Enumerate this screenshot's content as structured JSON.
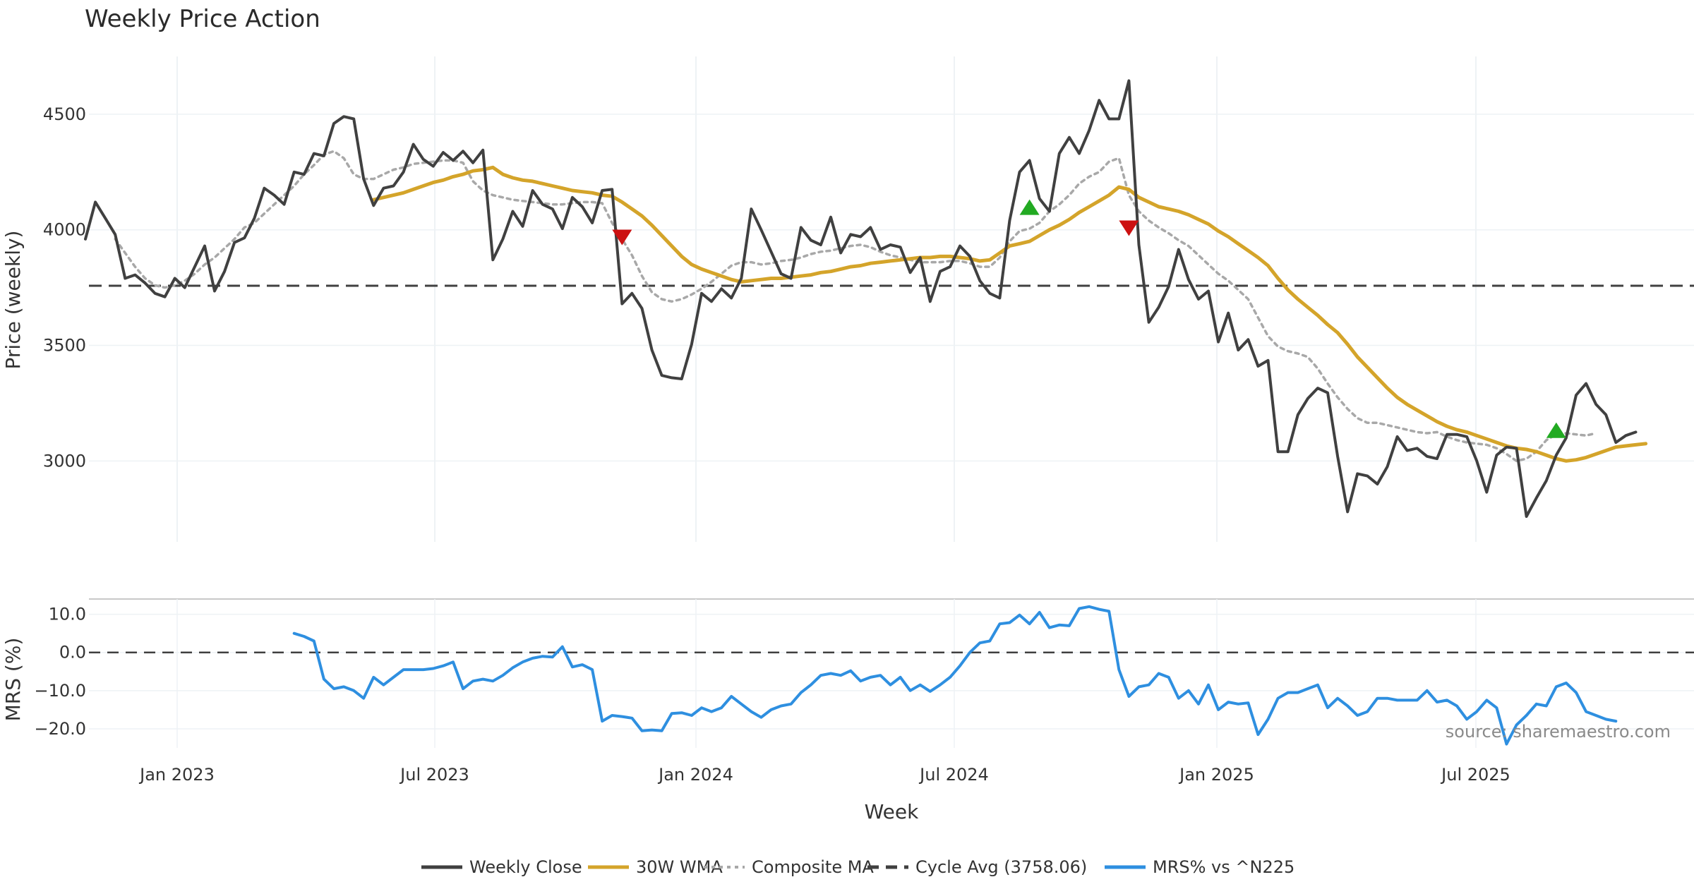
{
  "chart_data": {
    "type": "line",
    "title": "Weekly Price Action",
    "xlabel": "Week",
    "source": "source: sharemaestro.com",
    "x_ticks": [
      "Jan 2023",
      "Jul 2023",
      "Jan 2024",
      "Jul 2024",
      "Jan 2025",
      "Jul 2025"
    ],
    "start_week": 0,
    "end_week": 156,
    "price_panel": {
      "ylabel": "Price (weekly)",
      "ylim": [
        2650,
        4750
      ],
      "y_ticks": [
        3000,
        3500,
        4000,
        4500
      ],
      "cycle_avg": 3758.06,
      "series": [
        {
          "name": "Weekly Close",
          "color": "#404040",
          "style": "solid",
          "start": 0,
          "values": [
            3960,
            4120,
            4050,
            3980,
            3790,
            3805,
            3770,
            3725,
            3710,
            3790,
            3750,
            3840,
            3930,
            3735,
            3820,
            3945,
            3965,
            4050,
            4180,
            4150,
            4110,
            4250,
            4240,
            4330,
            4320,
            4460,
            4490,
            4480,
            4220,
            4105,
            4180,
            4190,
            4250,
            4370,
            4305,
            4275,
            4335,
            4300,
            4340,
            4290,
            4345,
            3870,
            3960,
            4080,
            4015,
            4170,
            4110,
            4090,
            4005,
            4140,
            4100,
            4030,
            4170,
            4175,
            3680,
            3725,
            3660,
            3480,
            3370,
            3360,
            3355,
            3505,
            3725,
            3690,
            3745,
            3705,
            3790,
            4090,
            4000,
            3905,
            3810,
            3790,
            4010,
            3955,
            3935,
            4055,
            3900,
            3980,
            3970,
            4010,
            3915,
            3935,
            3925,
            3815,
            3880,
            3690,
            3820,
            3840,
            3930,
            3885,
            3780,
            3725,
            3705,
            4040,
            4250,
            4300,
            4135,
            4080,
            4330,
            4400,
            4330,
            4430,
            4560,
            4480,
            4480,
            4645,
            3935,
            3600,
            3665,
            3755,
            3915,
            3785,
            3700,
            3735,
            3515,
            3640,
            3480,
            3525,
            3410,
            3435,
            3040,
            3040,
            3200,
            3270,
            3315,
            3295,
            3020,
            2780,
            2945,
            2935,
            2900,
            2975,
            3105,
            3045,
            3055,
            3020,
            3010,
            3115,
            3115,
            3105,
            3000,
            2865,
            3025,
            3060,
            3055,
            2760,
            2840,
            2915,
            3025,
            3100,
            3285,
            3335,
            3245,
            3200,
            3080,
            3110,
            3125
          ]
        },
        {
          "name": "30W WMA",
          "color": "#d4a42a",
          "style": "solid",
          "start": 29,
          "values": [
            4130,
            4140,
            4150,
            4160,
            4175,
            4190,
            4205,
            4215,
            4230,
            4240,
            4255,
            4260,
            4270,
            4240,
            4225,
            4215,
            4210,
            4200,
            4190,
            4180,
            4170,
            4165,
            4160,
            4150,
            4145,
            4120,
            4090,
            4060,
            4020,
            3975,
            3930,
            3885,
            3850,
            3830,
            3815,
            3800,
            3785,
            3775,
            3780,
            3785,
            3790,
            3790,
            3795,
            3800,
            3805,
            3815,
            3820,
            3830,
            3840,
            3845,
            3855,
            3860,
            3865,
            3870,
            3875,
            3880,
            3880,
            3885,
            3885,
            3880,
            3875,
            3865,
            3870,
            3900,
            3930,
            3940,
            3950,
            3975,
            4000,
            4020,
            4045,
            4075,
            4100,
            4125,
            4150,
            4185,
            4175,
            4140,
            4120,
            4100,
            4090,
            4080,
            4065,
            4045,
            4025,
            3995,
            3970,
            3940,
            3910,
            3880,
            3845,
            3790,
            3740,
            3700,
            3665,
            3630,
            3590,
            3555,
            3505,
            3450,
            3405,
            3360,
            3315,
            3275,
            3245,
            3220,
            3195,
            3170,
            3150,
            3135,
            3125,
            3110,
            3095,
            3080,
            3065,
            3055,
            3050,
            3040,
            3025,
            3010,
            3000,
            3005,
            3015,
            3030,
            3045,
            3060,
            3065,
            3070,
            3075
          ]
        },
        {
          "name": "Composite MA",
          "color": "#a8a8a8",
          "style": "dotted",
          "start": 3,
          "values": [
            3960,
            3900,
            3840,
            3790,
            3760,
            3750,
            3760,
            3780,
            3810,
            3850,
            3880,
            3920,
            3960,
            4010,
            4030,
            4070,
            4110,
            4150,
            4190,
            4240,
            4280,
            4325,
            4340,
            4310,
            4240,
            4220,
            4220,
            4240,
            4260,
            4270,
            4285,
            4290,
            4295,
            4300,
            4300,
            4290,
            4210,
            4170,
            4150,
            4140,
            4130,
            4125,
            4120,
            4115,
            4110,
            4110,
            4115,
            4120,
            4120,
            4115,
            4030,
            3960,
            3890,
            3800,
            3730,
            3700,
            3690,
            3700,
            3720,
            3745,
            3775,
            3810,
            3845,
            3860,
            3860,
            3850,
            3855,
            3865,
            3870,
            3880,
            3895,
            3905,
            3910,
            3920,
            3930,
            3935,
            3925,
            3905,
            3890,
            3880,
            3870,
            3860,
            3860,
            3860,
            3865,
            3865,
            3855,
            3840,
            3840,
            3880,
            3950,
            3995,
            4005,
            4030,
            4080,
            4110,
            4150,
            4200,
            4230,
            4250,
            4295,
            4310,
            4150,
            4080,
            4040,
            4010,
            3985,
            3955,
            3930,
            3890,
            3850,
            3810,
            3780,
            3740,
            3700,
            3620,
            3540,
            3495,
            3475,
            3465,
            3450,
            3400,
            3335,
            3275,
            3225,
            3185,
            3165,
            3165,
            3155,
            3145,
            3135,
            3125,
            3120,
            3125,
            3105,
            3090,
            3080,
            3075,
            3070,
            3055,
            3030,
            3000,
            3010,
            3040,
            3090,
            3115,
            3120,
            3115,
            3110,
            3120
          ]
        }
      ],
      "signals": [
        {
          "type": "sell",
          "week": 54,
          "price": 3970,
          "color": "#cc1111"
        },
        {
          "type": "buy",
          "week": 95,
          "price": 4095,
          "color": "#22aa22"
        },
        {
          "type": "sell",
          "week": 105,
          "price": 4010,
          "color": "#cc1111"
        },
        {
          "type": "buy",
          "week": 148,
          "price": 3130,
          "color": "#22aa22"
        }
      ]
    },
    "mrs_panel": {
      "ylabel": "MRS (%)",
      "ylim": [
        -25,
        14
      ],
      "y_ticks": [
        "10.0",
        "0.0",
        "−10.0",
        "−20.0"
      ],
      "y_tick_values": [
        10,
        0,
        -10,
        -20
      ],
      "zero_line": 0,
      "series": [
        {
          "name": "MRS% vs ^N225",
          "color": "#2e8fe0",
          "start": 21,
          "values": [
            5.0,
            4.2,
            3.0,
            -7.0,
            -9.5,
            -9.0,
            -10.0,
            -12.0,
            -6.5,
            -8.5,
            -6.5,
            -4.5,
            -4.5,
            -4.5,
            -4.2,
            -3.5,
            -2.5,
            -9.5,
            -7.5,
            -7.0,
            -7.5,
            -6.0,
            -4.0,
            -2.5,
            -1.5,
            -1.0,
            -1.2,
            1.5,
            -3.8,
            -3.2,
            -4.5,
            -18.0,
            -16.5,
            -16.8,
            -17.2,
            -20.5,
            -20.3,
            -20.5,
            -16.0,
            -15.8,
            -16.5,
            -14.5,
            -15.5,
            -14.5,
            -11.5,
            -13.5,
            -15.5,
            -17.0,
            -15.0,
            -14.0,
            -13.5,
            -10.5,
            -8.5,
            -6.0,
            -5.5,
            -6.0,
            -4.8,
            -7.5,
            -6.5,
            -6.0,
            -8.5,
            -6.5,
            -10.0,
            -8.5,
            -10.2,
            -8.5,
            -6.5,
            -3.5,
            0.0,
            2.5,
            3.0,
            7.5,
            7.8,
            9.8,
            7.5,
            10.5,
            6.5,
            7.2,
            7.0,
            11.5,
            12.0,
            11.3,
            10.8,
            -4.5,
            -11.5,
            -9.0,
            -8.5,
            -5.5,
            -6.5,
            -12.0,
            -10.0,
            -13.5,
            -8.5,
            -15.0,
            -13.0,
            -13.5,
            -13.2,
            -21.5,
            -17.5,
            -12.0,
            -10.5,
            -10.5,
            -9.5,
            -8.5,
            -14.5,
            -12.0,
            -14.0,
            -16.5,
            -15.5,
            -12.0,
            -12.0,
            -12.5,
            -12.5,
            -12.5,
            -10.0,
            -13.0,
            -12.5,
            -14.0,
            -17.5,
            -15.5,
            -12.5,
            -14.5,
            -24.0,
            -19.0,
            -16.5,
            -13.5,
            -14.0,
            -9.0,
            -8.0,
            -10.5,
            -15.5,
            -16.5,
            -17.5,
            -18.0
          ]
        }
      ]
    },
    "legend": [
      {
        "label": "Weekly Close",
        "color": "#404040",
        "style": "solid"
      },
      {
        "label": "30W WMA",
        "color": "#d4a42a",
        "style": "solid"
      },
      {
        "label": "Composite MA",
        "color": "#a8a8a8",
        "style": "dotted"
      },
      {
        "label": "Cycle Avg (3758.06)",
        "color": "#404040",
        "style": "dashed"
      },
      {
        "label": "MRS% vs ^N225",
        "color": "#2e8fe0",
        "style": "solid"
      }
    ]
  }
}
